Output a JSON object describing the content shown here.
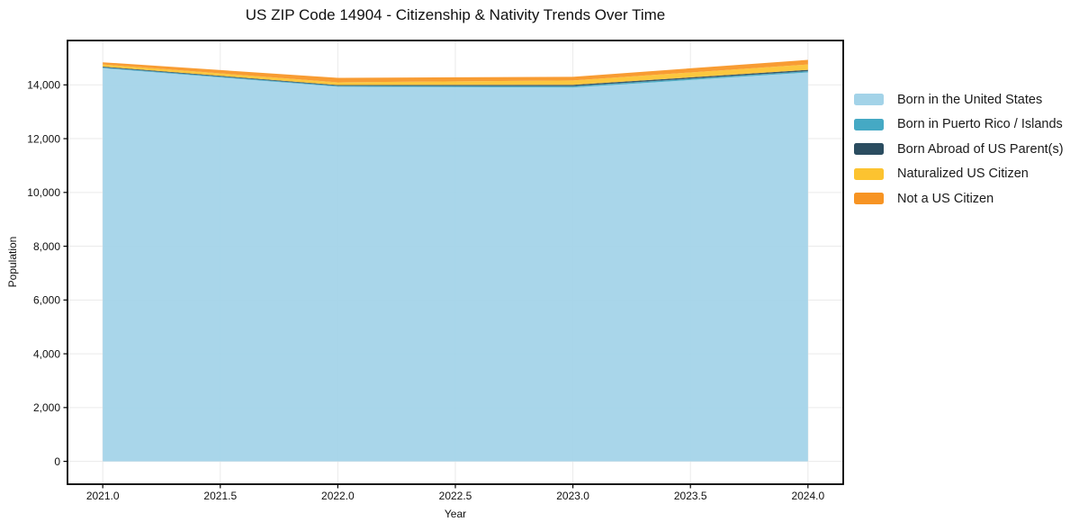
{
  "title": "US ZIP Code 14904 - Citizenship & Nativity Trends Over Time",
  "chart_data": {
    "type": "area",
    "stacked": true,
    "title": "US ZIP Code 14904 - Citizenship & Nativity Trends Over Time",
    "xlabel": "Year",
    "ylabel": "Population",
    "x": [
      2021,
      2022,
      2023,
      2024
    ],
    "series": [
      {
        "name": "Born in the United States",
        "color": "#a3d3e8",
        "values": [
          14620,
          13930,
          13900,
          14460
        ]
      },
      {
        "name": "Born in Puerto Rico / Islands",
        "color": "#45a9c4",
        "values": [
          30,
          35,
          50,
          50
        ]
      },
      {
        "name": "Born Abroad of US Parent(s)",
        "color": "#2b4d60",
        "values": [
          30,
          30,
          50,
          50
        ]
      },
      {
        "name": "Naturalized US Citizen",
        "color": "#fcc330",
        "values": [
          80,
          100,
          165,
          200
        ]
      },
      {
        "name": "Not a US Citizen",
        "color": "#f79423",
        "values": [
          80,
          165,
          135,
          170
        ]
      }
    ],
    "totals": [
      14840,
      14260,
      14300,
      14930
    ],
    "xlim": [
      2020.85,
      2024.15
    ],
    "ylim": [
      -850,
      15650
    ],
    "xticks": [
      2021.0,
      2021.5,
      2022.0,
      2022.5,
      2023.0,
      2023.5,
      2024.0
    ],
    "xtick_labels": [
      "2021.0",
      "2021.5",
      "2022.0",
      "2022.5",
      "2023.0",
      "2023.5",
      "2024.0"
    ],
    "yticks": [
      0,
      2000,
      4000,
      6000,
      8000,
      10000,
      12000,
      14000
    ],
    "ytick_labels": [
      "0",
      "2,000",
      "4,000",
      "6,000",
      "8,000",
      "10,000",
      "12,000",
      "14,000"
    ],
    "grid": true,
    "legend_position": "right-of-plot",
    "colors": {
      "grid": "#eaeaea",
      "spine": "#000000",
      "tick_text": "#111111",
      "background": "#ffffff"
    }
  }
}
